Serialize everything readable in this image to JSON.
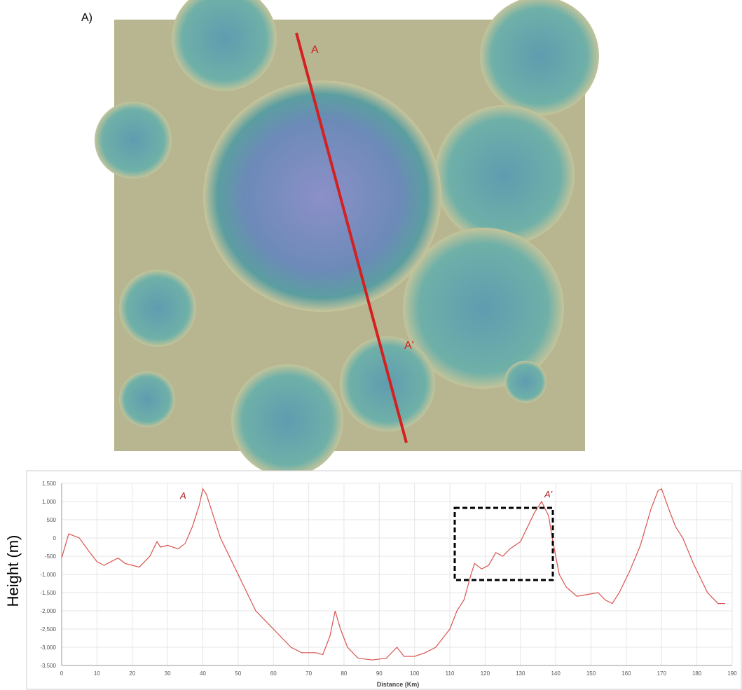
{
  "figure_label": "A)",
  "image_labels": [
    "A",
    "A'"
  ],
  "chart_data": {
    "type": "line",
    "ylabel": "Height (m)",
    "xlabel": "Distance (Km)",
    "annotations": [
      "A",
      "A'"
    ],
    "color": "#d9534f",
    "grid": true,
    "xlim": [
      0,
      190
    ],
    "ylim": [
      -3500,
      1500
    ],
    "xticks": [
      0,
      10,
      20,
      30,
      40,
      50,
      60,
      70,
      80,
      90,
      100,
      110,
      120,
      130,
      140,
      150,
      160,
      170,
      180,
      190
    ],
    "yticks": [
      {
        "value": 1500,
        "label": "1,500"
      },
      {
        "value": 1000,
        "label": "1,000"
      },
      500,
      0,
      -500,
      {
        "value": -1000,
        "label": "-1,000"
      },
      {
        "value": -1500,
        "label": "-1,500"
      },
      {
        "value": -2000,
        "label": "-2,000"
      },
      {
        "value": -2500,
        "label": "-2,500"
      },
      {
        "value": -3000,
        "label": "-3,000"
      },
      {
        "value": -3500,
        "label": "-3,500"
      }
    ],
    "x": [
      0,
      2,
      5,
      8,
      10,
      12,
      14,
      16,
      18,
      20,
      22,
      25,
      27,
      28,
      30,
      33,
      35,
      37,
      39,
      40,
      41,
      43,
      45,
      50,
      55,
      60,
      65,
      68,
      72,
      74,
      76,
      77.5,
      79,
      81,
      84,
      88,
      92,
      95,
      97,
      100,
      103,
      106,
      110,
      112,
      114,
      116,
      117,
      119,
      121,
      123,
      125,
      127,
      130,
      132,
      134,
      136,
      138,
      139,
      140,
      141,
      143,
      146,
      149,
      152,
      154,
      156,
      158,
      161,
      164,
      167,
      169,
      170,
      172,
      174,
      176,
      179,
      183,
      186,
      188
    ],
    "values": [
      -550,
      115,
      0,
      -400,
      -650,
      -750,
      -650,
      -550,
      -700,
      -750,
      -800,
      -500,
      -100,
      -250,
      -200,
      -300,
      -150,
      300,
      900,
      1350,
      1200,
      600,
      0,
      -1000,
      -2000,
      -2500,
      -3000,
      -3150,
      -3150,
      -3200,
      -2700,
      -2000,
      -2500,
      -3000,
      -3300,
      -3350,
      -3300,
      -3000,
      -3250,
      -3250,
      -3150,
      -3000,
      -2500,
      -2000,
      -1700,
      -1000,
      -700,
      -850,
      -750,
      -400,
      -500,
      -300,
      -100,
      300,
      700,
      1000,
      600,
      0,
      -500,
      -1000,
      -1350,
      -1600,
      -1550,
      -1500,
      -1700,
      -1800,
      -1500,
      -900,
      -200,
      800,
      1300,
      1350,
      800,
      300,
      0,
      -700,
      -1500,
      -1800,
      -1800
    ]
  }
}
